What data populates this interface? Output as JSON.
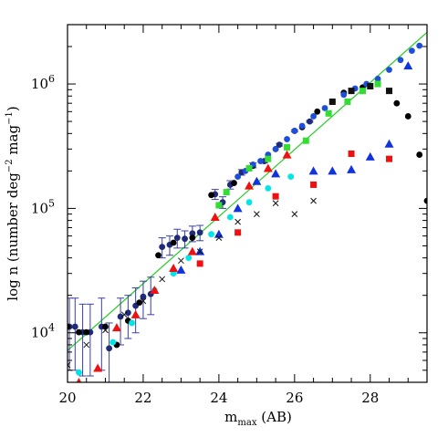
{
  "chart_data": {
    "type": "scatter",
    "title": "",
    "xlabel": "m",
    "xlabel_sub": "max",
    "xlabel_unit": " (AB)",
    "ylabel": "log n (number deg",
    "ylabel_sup1": "−2",
    "ylabel_mid": " mag",
    "ylabel_sup2": "−1",
    "ylabel_end": ")",
    "xlim": [
      20,
      29.5
    ],
    "ylim": [
      4000,
      3000000
    ],
    "yscale": "log",
    "xticks": [
      20,
      22,
      24,
      26,
      28
    ],
    "xtick_labels": [
      "20",
      "22",
      "24",
      "26",
      "28"
    ],
    "yticks": [
      10000,
      100000,
      1000000
    ],
    "ytick_labels": [
      {
        "base": "10",
        "exp": "4"
      },
      {
        "base": "10",
        "exp": "5"
      },
      {
        "base": "10",
        "exp": "6"
      }
    ],
    "grid": false,
    "legend": false,
    "series": [
      {
        "marker": "circle",
        "color": "#1f2a7a",
        "errorbars": true,
        "points": [
          [
            20.05,
            11200,
            5000,
            19000
          ],
          [
            20.2,
            11200,
            5000,
            19000
          ],
          [
            20.4,
            10100,
            4500,
            17000
          ],
          [
            20.6,
            10100,
            4500,
            17000
          ],
          [
            20.9,
            11200,
            5000,
            19000
          ],
          [
            21.1,
            7500,
            4000,
            12000
          ],
          [
            21.4,
            13500,
            8000,
            19000
          ],
          [
            21.6,
            14500,
            9000,
            20000
          ],
          [
            21.8,
            16500,
            10000,
            23000
          ],
          [
            22.0,
            19500,
            13000,
            26000
          ],
          [
            22.2,
            20500,
            14000,
            28000
          ],
          [
            22.5,
            49000,
            40000,
            58000
          ],
          [
            22.7,
            51000,
            42000,
            60000
          ],
          [
            22.9,
            58000,
            48000,
            68000
          ],
          [
            23.1,
            57000,
            48000,
            66000
          ],
          [
            23.3,
            63000,
            54000,
            72000
          ],
          [
            23.5,
            64000,
            55000,
            73000
          ],
          [
            23.9,
            130000,
            118000,
            142000
          ],
          [
            24.1,
            112000,
            100000,
            124000
          ],
          [
            24.3,
            155000,
            143000,
            167000
          ],
          [
            24.6,
            195000,
            185000,
            205000
          ],
          [
            24.9,
            222000,
            212000,
            232000
          ],
          [
            25.2,
            240000,
            232000,
            248000
          ],
          [
            25.6,
            325000,
            317000,
            333000
          ],
          [
            26.0,
            420000,
            412000,
            428000
          ],
          [
            26.4,
            500000,
            492000,
            508000
          ]
        ]
      },
      {
        "marker": "circle",
        "color": "#000000",
        "errorbars": false,
        "points": [
          [
            20.0,
            11200
          ],
          [
            20.3,
            10100
          ],
          [
            20.5,
            10100
          ],
          [
            21.0,
            11200
          ],
          [
            21.3,
            8000
          ],
          [
            21.6,
            12500
          ],
          [
            21.9,
            17500
          ],
          [
            22.4,
            42000
          ],
          [
            22.8,
            53000
          ],
          [
            23.3,
            58000
          ],
          [
            23.8,
            128000
          ],
          [
            24.4,
            160000
          ],
          [
            24.9,
            220000
          ],
          [
            25.5,
            300000
          ],
          [
            26.2,
            450000
          ],
          [
            26.6,
            600000
          ],
          [
            27.0,
            720000
          ],
          [
            27.3,
            850000
          ],
          [
            27.8,
            940000
          ],
          [
            28.2,
            1000000
          ],
          [
            28.5,
            880000
          ],
          [
            28.7,
            700000
          ],
          [
            29.0,
            550000
          ],
          [
            29.3,
            270000
          ],
          [
            29.5,
            115000
          ]
        ]
      },
      {
        "marker": "circle",
        "color": "#1f4fd8",
        "errorbars": false,
        "points": [
          [
            24.5,
            180000
          ],
          [
            24.7,
            200000
          ],
          [
            24.9,
            225000
          ],
          [
            25.1,
            240000
          ],
          [
            25.3,
            270000
          ],
          [
            25.5,
            300000
          ],
          [
            25.8,
            360000
          ],
          [
            26.0,
            420000
          ],
          [
            26.2,
            460000
          ],
          [
            26.5,
            550000
          ],
          [
            26.8,
            640000
          ],
          [
            27.0,
            720000
          ],
          [
            27.3,
            820000
          ],
          [
            27.6,
            920000
          ],
          [
            27.9,
            1000000
          ],
          [
            28.2,
            1100000
          ],
          [
            28.5,
            1300000
          ],
          [
            28.8,
            1560000
          ],
          [
            29.1,
            1850000
          ],
          [
            29.3,
            2030000
          ]
        ]
      },
      {
        "marker": "circle",
        "color": "#00e5e5",
        "errorbars": false,
        "points": [
          [
            20.3,
            4800
          ],
          [
            21.2,
            8400
          ],
          [
            21.7,
            12000
          ],
          [
            22.3,
            22000
          ],
          [
            22.8,
            30000
          ],
          [
            23.2,
            40000
          ],
          [
            23.8,
            62000
          ],
          [
            24.3,
            85000
          ],
          [
            24.8,
            112000
          ],
          [
            25.3,
            145000
          ],
          [
            25.9,
            180000
          ]
        ]
      },
      {
        "marker": "square",
        "color": "#33dd33",
        "errorbars": false,
        "points": [
          [
            24.0,
            106000
          ],
          [
            24.2,
            135000
          ],
          [
            24.8,
            210000
          ],
          [
            25.3,
            250000
          ],
          [
            25.8,
            310000
          ],
          [
            26.3,
            350000
          ],
          [
            26.9,
            580000
          ],
          [
            27.4,
            720000
          ],
          [
            27.8,
            880000
          ],
          [
            28.2,
            1000000
          ]
        ]
      },
      {
        "marker": "square",
        "color": "#ee1111",
        "errorbars": false,
        "points": [
          [
            23.5,
            36000
          ],
          [
            24.5,
            64000
          ],
          [
            25.5,
            125000
          ],
          [
            26.5,
            155000
          ],
          [
            27.5,
            275000
          ],
          [
            28.5,
            250000
          ]
        ]
      },
      {
        "marker": "square",
        "color": "#111111",
        "errorbars": false,
        "points": [
          [
            27.0,
            720000
          ],
          [
            27.5,
            880000
          ],
          [
            28.0,
            960000
          ],
          [
            28.5,
            880000
          ]
        ]
      },
      {
        "marker": "triangle",
        "color": "#1133dd",
        "errorbars": false,
        "points": [
          [
            23.0,
            32000
          ],
          [
            23.5,
            45000
          ],
          [
            24.0,
            62000
          ],
          [
            24.5,
            100000
          ],
          [
            25.0,
            165000
          ],
          [
            25.5,
            190000
          ],
          [
            26.5,
            200000
          ],
          [
            27.0,
            200000
          ],
          [
            27.5,
            205000
          ],
          [
            28.0,
            260000
          ],
          [
            28.5,
            330000
          ],
          [
            29.0,
            1400000
          ]
        ]
      },
      {
        "marker": "triangle",
        "color": "#ee1111",
        "errorbars": false,
        "points": [
          [
            20.3,
            4000
          ],
          [
            20.8,
            5200
          ],
          [
            21.3,
            11000
          ],
          [
            21.8,
            14000
          ],
          [
            22.3,
            22000
          ],
          [
            22.8,
            33000
          ],
          [
            23.3,
            45000
          ],
          [
            23.9,
            85000
          ],
          [
            24.8,
            152000
          ],
          [
            25.3,
            210000
          ],
          [
            25.8,
            270000
          ]
        ]
      },
      {
        "marker": "cross",
        "color": "#111111",
        "errorbars": false,
        "points": [
          [
            20.0,
            5500
          ],
          [
            20.5,
            8000
          ],
          [
            21.0,
            10500
          ],
          [
            21.5,
            14000
          ],
          [
            22.0,
            18000
          ],
          [
            22.5,
            27000
          ],
          [
            23.0,
            38000
          ],
          [
            23.5,
            45000
          ],
          [
            24.0,
            58000
          ],
          [
            24.5,
            78000
          ],
          [
            25.0,
            90000
          ],
          [
            25.5,
            110000
          ],
          [
            26.0,
            90000
          ],
          [
            26.5,
            115000
          ]
        ]
      }
    ],
    "fit_line": {
      "color": "#22cc22",
      "x": [
        20.0,
        29.5
      ],
      "y": [
        7200,
        2600000
      ]
    }
  }
}
